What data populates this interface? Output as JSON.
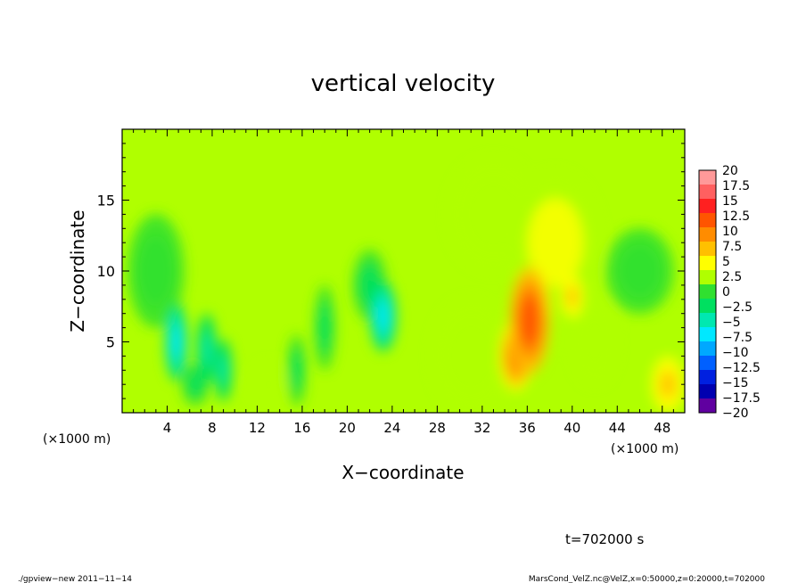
{
  "chart_data": {
    "type": "heatmap",
    "title": "vertical velocity",
    "xlabel": "X−coordinate",
    "ylabel": "Z−coordinate",
    "x_unit": "(×1000 m)",
    "x_unit_right": "(×1000 m)",
    "x_unit_left": "(×1000 m)",
    "xlim": [
      0,
      50
    ],
    "ylim": [
      0,
      20
    ],
    "xticks": [
      4,
      8,
      12,
      16,
      20,
      24,
      28,
      32,
      36,
      40,
      44,
      48
    ],
    "yticks": [
      5,
      10,
      15
    ],
    "colorbar": {
      "levels": [
        20,
        17.5,
        15,
        12.5,
        10,
        7.5,
        5,
        2.5,
        0,
        -2.5,
        -5,
        -7.5,
        -10,
        -12.5,
        -15,
        -17.5,
        -20
      ],
      "labels": [
        "20",
        "17.5",
        "15",
        "12.5",
        "10",
        "7.5",
        "5",
        "2.5",
        "0",
        "−2.5",
        "−5",
        "−7.5",
        "−10",
        "−12.5",
        "−15",
        "−17.5",
        "−20"
      ],
      "colors": [
        "#ff9999",
        "#ff6060",
        "#ff2020",
        "#ff5500",
        "#ff8c00",
        "#ffc000",
        "#ffff00",
        "#b0ff00",
        "#30e030",
        "#00e060",
        "#00e8b0",
        "#00e8ff",
        "#00a8ff",
        "#0060ff",
        "#0020e0",
        "#0000b0",
        "#6000a0"
      ]
    },
    "features": [
      {
        "x": 4.8,
        "z": 5.0,
        "value": -8,
        "rx": 1.0,
        "rz": 2.8
      },
      {
        "x": 7.5,
        "z": 4.5,
        "value": -5,
        "rx": 0.9,
        "rz": 2.5
      },
      {
        "x": 9.0,
        "z": 3.0,
        "value": -5,
        "rx": 0.8,
        "rz": 2.2
      },
      {
        "x": 6.5,
        "z": 2.0,
        "value": -3.5,
        "rx": 1.2,
        "rz": 1.5
      },
      {
        "x": 15.5,
        "z": 3.0,
        "value": -3,
        "rx": 0.8,
        "rz": 2.5
      },
      {
        "x": 18.0,
        "z": 6.0,
        "value": -2.5,
        "rx": 0.9,
        "rz": 3.0
      },
      {
        "x": 23.2,
        "z": 6.8,
        "value": -8,
        "rx": 1.2,
        "rz": 2.5
      },
      {
        "x": 22.0,
        "z": 9.0,
        "value": -3,
        "rx": 1.5,
        "rz": 2.5
      },
      {
        "x": 3.0,
        "z": 10.0,
        "value": -2,
        "rx": 2.5,
        "rz": 4.0
      },
      {
        "x": 13.0,
        "z": 2.0,
        "value": 2.0,
        "rx": 1.5,
        "rz": 1.5
      },
      {
        "x": 31.0,
        "z": 4.0,
        "value": 2.5,
        "rx": 3.5,
        "rz": 4.0
      },
      {
        "x": 36.2,
        "z": 6.5,
        "value": 12,
        "rx": 1.8,
        "rz": 3.8
      },
      {
        "x": 35.0,
        "z": 4.0,
        "value": 10,
        "rx": 1.5,
        "rz": 2.5
      },
      {
        "x": 37.0,
        "z": 7.5,
        "value": 9,
        "rx": 1.0,
        "rz": 2.0
      },
      {
        "x": 40.0,
        "z": 8.2,
        "value": 6,
        "rx": 1.0,
        "rz": 1.5
      },
      {
        "x": 38.5,
        "z": 12.0,
        "value": 3,
        "rx": 4.0,
        "rz": 5.0
      },
      {
        "x": 33.0,
        "z": 14.0,
        "value": 2,
        "rx": 4.0,
        "rz": 4.0
      },
      {
        "x": 48.5,
        "z": 2.0,
        "value": 6,
        "rx": 1.5,
        "rz": 2.0
      },
      {
        "x": 42.0,
        "z": 5.0,
        "value": 2,
        "rx": 2.0,
        "rz": 3.0
      },
      {
        "x": 46.0,
        "z": 10.0,
        "value": -1.5,
        "rx": 3.0,
        "rz": 3.0
      }
    ],
    "annotation_time": "t=702000 s"
  },
  "footer": {
    "left": "./gpview−new   2011−11−14",
    "right": "MarsCond_VelZ.nc@VelZ,x=0:50000,z=0:20000,t=702000"
  }
}
